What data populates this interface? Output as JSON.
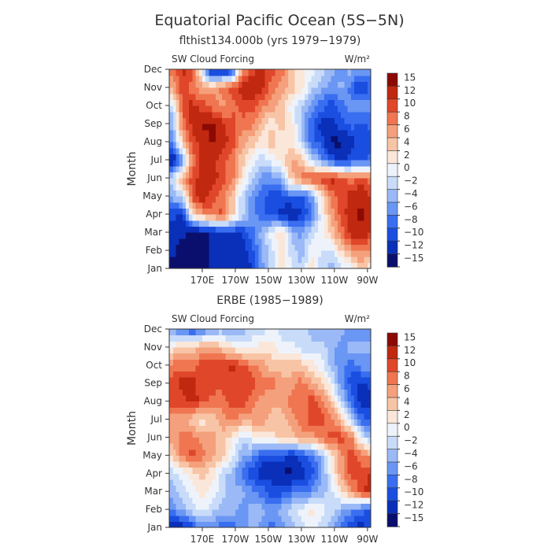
{
  "figure": {
    "title": "Equatorial Pacific Ocean (5S−5N)",
    "panels": [
      {
        "subtitle": "flthist134.000b (yrs 1979−1979)",
        "left_label": "SW Cloud Forcing",
        "right_label": "W/m²",
        "ylabel": "Month"
      },
      {
        "subtitle": "ERBE (1985−1989)",
        "left_label": "SW Cloud Forcing",
        "right_label": "W/m²",
        "ylabel": "Month"
      }
    ]
  },
  "chart_data": [
    {
      "type": "heatmap",
      "title": "flthist134.000b (yrs 1979−1979)",
      "ylabel": "Month",
      "xlabel": "",
      "x_ticks": [
        "170E",
        "170W",
        "150W",
        "130W",
        "110W",
        "90W"
      ],
      "x_tick_lon": [
        170,
        190,
        210,
        230,
        250,
        270
      ],
      "xlim": [
        150,
        272
      ],
      "y_ticks": [
        "Jan",
        "Feb",
        "Mar",
        "Apr",
        "May",
        "Jun",
        "Jul",
        "Aug",
        "Sep",
        "Oct",
        "Nov",
        "Dec"
      ],
      "colorbar": {
        "levels": [
          -15,
          -12,
          -10,
          -8,
          -6,
          -4,
          -2,
          0,
          2,
          4,
          6,
          8,
          10,
          12,
          15
        ],
        "labels": [
          "15",
          "12",
          "10",
          "8",
          "6",
          "4",
          "2",
          "0",
          "−2",
          "−4",
          "−6",
          "−8",
          "−10",
          "−12",
          "−15"
        ],
        "colors": [
          "#0a0f6e",
          "#0a2fb8",
          "#1a4ee0",
          "#3a6ef0",
          "#6a96f4",
          "#9ab9f6",
          "#c8dcfa",
          "#eef3fb",
          "#fbe7d9",
          "#f8c4a6",
          "#f5a07c",
          "#ef7650",
          "#e0472a",
          "#c02810",
          "#8c0a04"
        ]
      },
      "lon": [
        152,
        158,
        164,
        170,
        176,
        182,
        188,
        194,
        200,
        206,
        212,
        218,
        224,
        230,
        236,
        242,
        248,
        254,
        260,
        266,
        272
      ],
      "months": [
        "Jan",
        "Feb",
        "Mar",
        "Apr",
        "May",
        "Jun",
        "Jul",
        "Aug",
        "Sep",
        "Oct",
        "Nov",
        "Dec"
      ],
      "values": [
        [
          -14,
          -14,
          -14,
          -14,
          -13,
          -12,
          -12,
          -13,
          -11,
          -6,
          -2,
          2,
          -1,
          -3,
          2,
          -2,
          -4,
          -2,
          0,
          3,
          2
        ],
        [
          -13,
          -15,
          -14,
          -14,
          -13,
          -12,
          -12,
          -12,
          -10,
          -5,
          -2,
          3,
          -2,
          -4,
          1,
          -1,
          -2,
          3,
          6,
          8,
          6
        ],
        [
          -12,
          -13,
          -14,
          -14,
          -13,
          -12,
          -11,
          -11,
          -8,
          -4,
          0,
          3,
          -4,
          -6,
          -2,
          0,
          4,
          8,
          12,
          13,
          11
        ],
        [
          -10,
          -12,
          2,
          6,
          8,
          10,
          4,
          -2,
          -6,
          -8,
          -10,
          -12,
          -14,
          -11,
          -8,
          0,
          6,
          10,
          12,
          14,
          13
        ],
        [
          -4,
          -2,
          10,
          13,
          10,
          8,
          4,
          -2,
          -6,
          -8,
          -10,
          -10,
          -8,
          -10,
          -6,
          2,
          8,
          10,
          12,
          13,
          11
        ],
        [
          -2,
          6,
          10,
          12,
          12,
          10,
          8,
          2,
          -2,
          -6,
          -6,
          -4,
          4,
          8,
          10,
          10,
          12,
          10,
          8,
          10,
          8
        ],
        [
          -14,
          -6,
          8,
          12,
          12,
          10,
          8,
          4,
          0,
          -2,
          0,
          2,
          6,
          4,
          -2,
          -6,
          -10,
          -12,
          -10,
          -10,
          -8
        ],
        [
          -6,
          4,
          10,
          12,
          14,
          12,
          10,
          6,
          4,
          2,
          4,
          2,
          2,
          -2,
          -8,
          -10,
          -14,
          -14,
          -12,
          -10,
          -10
        ],
        [
          -4,
          8,
          12,
          14,
          14,
          12,
          10,
          8,
          8,
          4,
          2,
          4,
          2,
          -4,
          -8,
          -12,
          -12,
          -10,
          -8,
          -10,
          -8
        ],
        [
          -2,
          10,
          12,
          10,
          8,
          6,
          8,
          10,
          10,
          8,
          6,
          4,
          0,
          -2,
          -6,
          -8,
          -10,
          -8,
          -6,
          -4,
          -6
        ],
        [
          6,
          10,
          8,
          6,
          6,
          8,
          10,
          12,
          14,
          12,
          8,
          6,
          4,
          2,
          -2,
          -4,
          -6,
          -4,
          -8,
          -12,
          -8
        ],
        [
          8,
          12,
          10,
          -2,
          -14,
          -14,
          -12,
          6,
          10,
          12,
          10,
          8,
          4,
          2,
          0,
          -2,
          -4,
          -6,
          -4,
          -6,
          -6
        ]
      ]
    },
    {
      "type": "heatmap",
      "title": "ERBE (1985−1989)",
      "ylabel": "Month",
      "xlabel": "",
      "x_ticks": [
        "170E",
        "170W",
        "150W",
        "130W",
        "110W",
        "90W"
      ],
      "x_tick_lon": [
        170,
        190,
        210,
        230,
        250,
        270
      ],
      "xlim": [
        150,
        272
      ],
      "y_ticks": [
        "Jan",
        "Feb",
        "Mar",
        "Apr",
        "May",
        "Jun",
        "Jul",
        "Aug",
        "Sep",
        "Oct",
        "Nov",
        "Dec"
      ],
      "colorbar": {
        "levels": [
          -15,
          -12,
          -10,
          -8,
          -6,
          -4,
          -2,
          0,
          2,
          4,
          6,
          8,
          10,
          12,
          15
        ],
        "labels": [
          "15",
          "12",
          "10",
          "8",
          "6",
          "4",
          "2",
          "0",
          "−2",
          "−4",
          "−6",
          "−8",
          "−10",
          "−12",
          "−15"
        ],
        "colors": [
          "#0a0f6e",
          "#0a2fb8",
          "#1a4ee0",
          "#3a6ef0",
          "#6a96f4",
          "#9ab9f6",
          "#c8dcfa",
          "#eef3fb",
          "#fbe7d9",
          "#f8c4a6",
          "#f5a07c",
          "#ef7650",
          "#e0472a",
          "#c02810",
          "#8c0a04"
        ]
      },
      "lon": [
        152,
        158,
        164,
        170,
        176,
        182,
        188,
        194,
        200,
        206,
        212,
        218,
        224,
        230,
        236,
        242,
        248,
        254,
        260,
        266,
        272
      ],
      "months": [
        "Jan",
        "Feb",
        "Mar",
        "Apr",
        "May",
        "Jun",
        "Jul",
        "Aug",
        "Sep",
        "Oct",
        "Nov",
        "Dec"
      ],
      "values": [
        [
          -14,
          -12,
          -10,
          -6,
          -6,
          -8,
          -8,
          -6,
          -4,
          -6,
          -8,
          -6,
          -4,
          -2,
          0,
          -2,
          -4,
          -8,
          -10,
          -12,
          -10
        ],
        [
          -6,
          -4,
          -2,
          0,
          -2,
          -4,
          -4,
          -6,
          -4,
          -4,
          -6,
          -4,
          -2,
          0,
          2,
          0,
          -2,
          -4,
          -6,
          -8,
          -10
        ],
        [
          -4,
          -2,
          0,
          2,
          0,
          -2,
          -4,
          -4,
          -6,
          -8,
          -10,
          -10,
          -8,
          -8,
          -6,
          -4,
          -2,
          2,
          6,
          10,
          12
        ],
        [
          -2,
          0,
          2,
          4,
          2,
          -2,
          -4,
          -8,
          -10,
          -12,
          -12,
          -14,
          -14,
          -12,
          -10,
          -6,
          0,
          6,
          10,
          10,
          12
        ],
        [
          4,
          8,
          10,
          8,
          6,
          4,
          0,
          -4,
          -6,
          -10,
          -10,
          -10,
          -12,
          -10,
          -8,
          -4,
          2,
          6,
          10,
          8,
          6
        ],
        [
          6,
          8,
          8,
          6,
          6,
          4,
          2,
          -2,
          0,
          2,
          2,
          4,
          4,
          6,
          6,
          8,
          10,
          10,
          8,
          0,
          -4
        ],
        [
          6,
          6,
          4,
          2,
          4,
          6,
          8,
          6,
          6,
          6,
          4,
          4,
          6,
          8,
          10,
          10,
          8,
          4,
          -2,
          -8,
          -10
        ],
        [
          10,
          10,
          12,
          10,
          8,
          8,
          10,
          10,
          8,
          6,
          6,
          6,
          8,
          8,
          10,
          8,
          4,
          -2,
          -8,
          -12,
          -12
        ],
        [
          10,
          12,
          12,
          10,
          10,
          10,
          10,
          10,
          10,
          8,
          8,
          6,
          6,
          8,
          6,
          4,
          0,
          -6,
          -10,
          -12,
          -10
        ],
        [
          8,
          8,
          8,
          10,
          10,
          10,
          12,
          10,
          8,
          6,
          4,
          4,
          4,
          4,
          2,
          0,
          -4,
          -6,
          -8,
          -6,
          -6
        ],
        [
          2,
          4,
          4,
          6,
          6,
          4,
          2,
          0,
          0,
          2,
          2,
          0,
          0,
          -2,
          -2,
          -2,
          -4,
          -6,
          -4,
          -4,
          -4
        ],
        [
          -6,
          -8,
          -10,
          -8,
          -6,
          -4,
          -6,
          -4,
          -2,
          -2,
          0,
          -2,
          -2,
          -2,
          -4,
          -4,
          -4,
          -4,
          -6,
          -6,
          -6
        ]
      ]
    }
  ]
}
